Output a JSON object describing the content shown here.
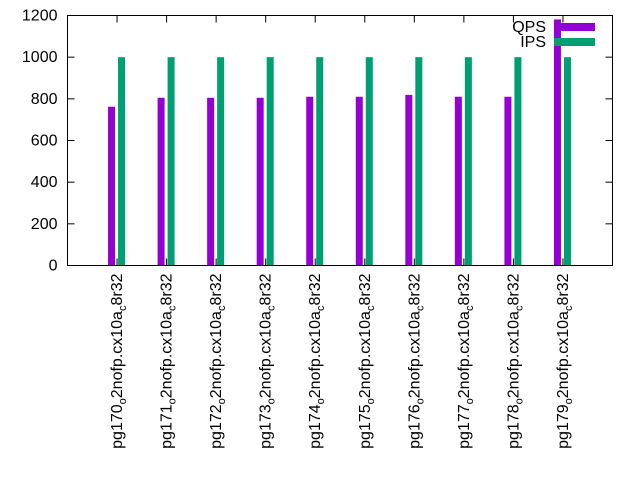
{
  "chart_data": {
    "type": "bar",
    "title": "",
    "xlabel": "",
    "ylabel": "",
    "ylim": [
      0,
      1200
    ],
    "yticks": [
      0,
      200,
      400,
      600,
      800,
      1000,
      1200
    ],
    "grid": false,
    "legend": "top-right",
    "categories": [
      "pg170_o2nofp.cx10a_c8r32",
      "pg171_o2nofp.cx10a_c8r32",
      "pg172_o2nofp.cx10a_c8r32",
      "pg173_o2nofp.cx10a_c8r32",
      "pg174_o2nofp.cx10a_c8r32",
      "pg175_o2nofp.cx10a_c8r32",
      "pg176_o2nofp.cx10a_c8r32",
      "pg177_o2nofp.cx10a_c8r32",
      "pg178_o2nofp.cx10a_c8r32",
      "pg179_o2nofp.cx10a_c8r32"
    ],
    "series": [
      {
        "name": "QPS",
        "color": "#9400d3",
        "values": [
          762,
          805,
          805,
          805,
          810,
          810,
          819,
          810,
          810,
          1181
        ]
      },
      {
        "name": "IPS",
        "color": "#009e73",
        "values": [
          1000,
          1000,
          1000,
          1000,
          1000,
          1000,
          1000,
          1000,
          1000,
          1000
        ]
      }
    ]
  }
}
